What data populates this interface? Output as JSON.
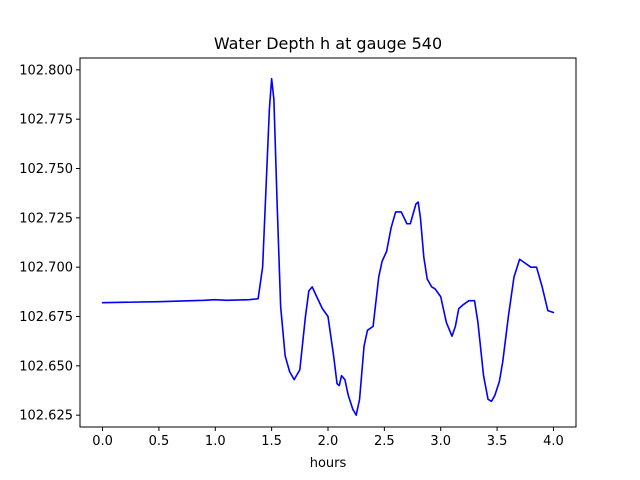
{
  "chart_data": {
    "type": "line",
    "title": "Water Depth h at gauge 540",
    "xlabel": "hours",
    "ylabel": "",
    "xlim": [
      -0.2,
      4.2
    ],
    "ylim": [
      102.619,
      102.806
    ],
    "x_ticks": [
      0.0,
      0.5,
      1.0,
      1.5,
      2.0,
      2.5,
      3.0,
      3.5,
      4.0
    ],
    "x_tick_labels": [
      "0.0",
      "0.5",
      "1.0",
      "1.5",
      "2.0",
      "2.5",
      "3.0",
      "3.5",
      "4.0"
    ],
    "y_ticks": [
      102.625,
      102.65,
      102.675,
      102.7,
      102.725,
      102.75,
      102.775,
      102.8
    ],
    "y_tick_labels": [
      "102.625",
      "102.650",
      "102.675",
      "102.700",
      "102.725",
      "102.750",
      "102.775",
      "102.800"
    ],
    "grid": false,
    "legend": "none",
    "series": [
      {
        "color": "#0000ff",
        "x": [
          0.0,
          0.5,
          0.9,
          1.0,
          1.1,
          1.3,
          1.38,
          1.42,
          1.45,
          1.48,
          1.5,
          1.52,
          1.55,
          1.58,
          1.62,
          1.66,
          1.7,
          1.75,
          1.8,
          1.83,
          1.86,
          1.9,
          1.95,
          2.0,
          2.05,
          2.08,
          2.1,
          2.12,
          2.15,
          2.18,
          2.22,
          2.25,
          2.28,
          2.32,
          2.35,
          2.4,
          2.45,
          2.48,
          2.52,
          2.56,
          2.6,
          2.65,
          2.7,
          2.73,
          2.75,
          2.78,
          2.8,
          2.82,
          2.85,
          2.88,
          2.92,
          2.95,
          3.0,
          3.05,
          3.1,
          3.13,
          3.16,
          3.2,
          3.25,
          3.3,
          3.33,
          3.38,
          3.42,
          3.45,
          3.48,
          3.52,
          3.55,
          3.6,
          3.65,
          3.7,
          3.75,
          3.8,
          3.85,
          3.9,
          3.95,
          4.0
        ],
        "y": [
          102.682,
          102.6825,
          102.6832,
          102.6835,
          102.6832,
          102.6835,
          102.684,
          102.7,
          102.74,
          102.78,
          102.7955,
          102.785,
          102.73,
          102.68,
          102.655,
          102.647,
          102.643,
          102.648,
          102.675,
          102.688,
          102.69,
          102.685,
          102.679,
          102.675,
          102.655,
          102.641,
          102.64,
          102.645,
          102.643,
          102.635,
          102.628,
          102.625,
          102.633,
          102.66,
          102.668,
          102.67,
          102.695,
          102.703,
          102.708,
          102.72,
          102.728,
          102.728,
          102.722,
          102.722,
          102.726,
          102.732,
          102.733,
          102.725,
          102.705,
          102.694,
          102.69,
          102.689,
          102.685,
          102.672,
          102.665,
          102.67,
          102.679,
          102.681,
          102.683,
          102.683,
          102.672,
          102.645,
          102.633,
          102.632,
          102.635,
          102.642,
          102.652,
          102.675,
          102.695,
          102.704,
          102.702,
          102.7,
          102.7,
          102.69,
          102.678,
          102.677
        ]
      }
    ]
  }
}
